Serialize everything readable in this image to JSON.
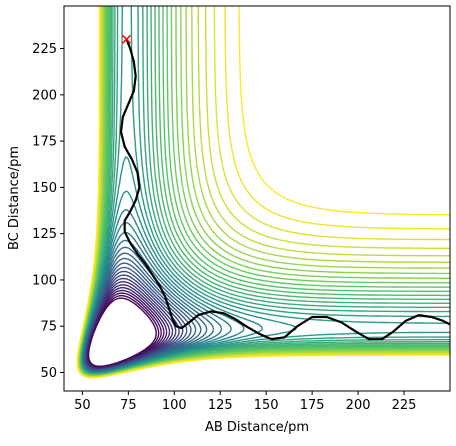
{
  "chart_data": {
    "type": "contour",
    "title": "",
    "xlabel": "AB Distance/pm",
    "ylabel": "BC Distance/pm",
    "xlim": [
      40,
      250
    ],
    "ylim": [
      40,
      248
    ],
    "xticks": [
      50,
      75,
      100,
      125,
      150,
      175,
      200,
      225
    ],
    "yticks": [
      50,
      75,
      100,
      125,
      150,
      175,
      200,
      225
    ],
    "grid": false,
    "legend": "none",
    "contour_levels": 40,
    "colormap": [
      "#440154",
      "#3b528b",
      "#21918c",
      "#5ec962",
      "#fde725"
    ],
    "trajectory": {
      "color": "#000000",
      "points": [
        [
          74,
          230
        ],
        [
          76,
          225
        ],
        [
          78,
          218
        ],
        [
          79,
          210
        ],
        [
          78,
          202
        ],
        [
          75,
          195
        ],
        [
          72,
          188
        ],
        [
          71,
          180
        ],
        [
          73,
          172
        ],
        [
          77,
          165
        ],
        [
          80,
          158
        ],
        [
          81,
          150
        ],
        [
          79,
          143
        ],
        [
          76,
          137
        ],
        [
          73,
          132
        ],
        [
          73,
          126
        ],
        [
          76,
          120
        ],
        [
          80,
          114
        ],
        [
          84,
          109
        ],
        [
          88,
          103
        ],
        [
          92,
          97
        ],
        [
          95,
          91
        ],
        [
          97,
          85
        ],
        [
          99,
          79
        ],
        [
          101,
          75
        ],
        [
          104,
          74
        ],
        [
          108,
          77
        ],
        [
          113,
          81
        ],
        [
          120,
          83
        ],
        [
          127,
          82
        ],
        [
          133,
          79
        ],
        [
          139,
          75
        ],
        [
          146,
          71
        ],
        [
          153,
          68
        ],
        [
          160,
          69
        ],
        [
          167,
          75
        ],
        [
          175,
          80
        ],
        [
          183,
          80
        ],
        [
          191,
          77
        ],
        [
          199,
          72
        ],
        [
          206,
          68
        ],
        [
          213,
          68
        ],
        [
          219,
          72
        ],
        [
          226,
          78
        ],
        [
          233,
          81
        ],
        [
          240,
          80
        ],
        [
          246,
          78
        ],
        [
          250,
          76
        ]
      ]
    },
    "start_marker": {
      "x": 74,
      "y": 230,
      "symbol": "x",
      "color": "#ff0000"
    }
  }
}
